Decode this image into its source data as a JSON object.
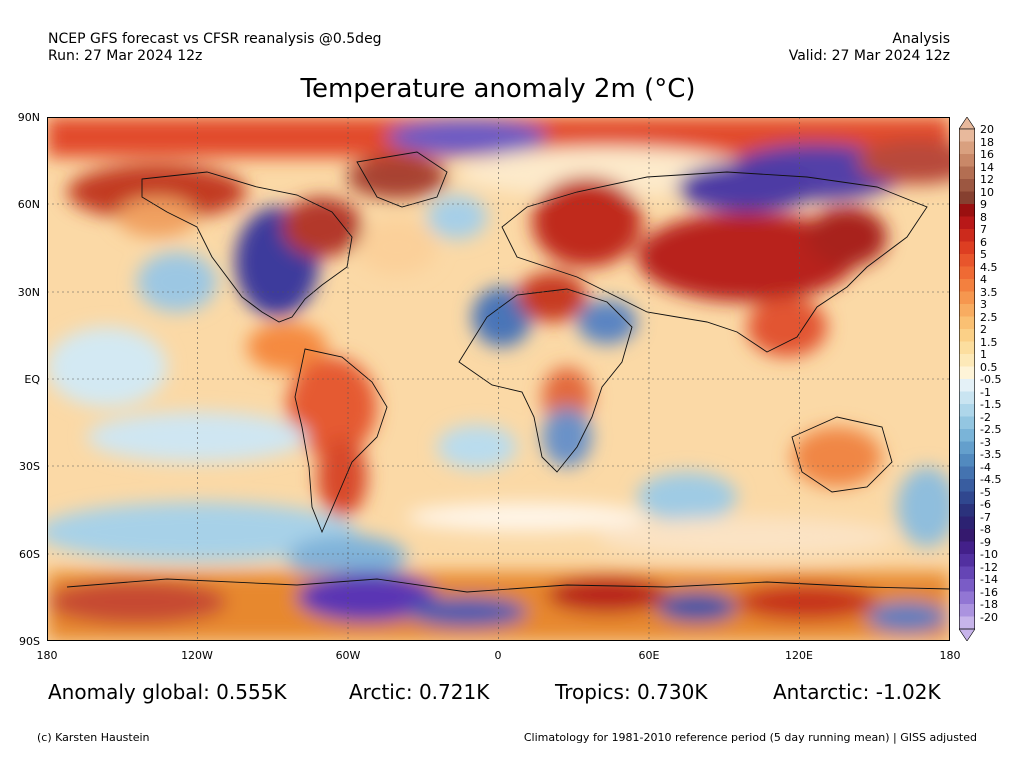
{
  "header": {
    "left_line1": "NCEP GFS forecast vs CFSR reanalysis @0.5deg",
    "left_line2": "Run: 27 Mar 2024 12z",
    "right_line1": "Analysis",
    "right_line2": "Valid: 27 Mar 2024 12z"
  },
  "title": "Temperature anomaly 2m (°C)",
  "map": {
    "lat_labels": [
      "90N",
      "60N",
      "30N",
      "EQ",
      "30S",
      "60S",
      "90S"
    ],
    "lon_labels": [
      "180",
      "120W",
      "60W",
      "0",
      "60E",
      "120E",
      "180"
    ]
  },
  "colorbar": {
    "labels": [
      "20",
      "18",
      "16",
      "14",
      "12",
      "10",
      "9",
      "8",
      "7",
      "6",
      "5",
      "4.5",
      "4",
      "3.5",
      "3",
      "2.5",
      "2",
      "1.5",
      "1",
      "0.5",
      "-0.5",
      "-1",
      "-1.5",
      "-2",
      "-2.5",
      "-3",
      "-3.5",
      "-4",
      "-4.5",
      "-5",
      "-6",
      "-7",
      "-8",
      "-9",
      "-10",
      "-12",
      "-14",
      "-16",
      "-18",
      "-20"
    ],
    "colors": [
      "#e8b99c",
      "#d9a07f",
      "#c98868",
      "#b36e52",
      "#9c5741",
      "#864030",
      "#9a1010",
      "#b81818",
      "#cc2a1c",
      "#dd3e22",
      "#e8552c",
      "#ef6a34",
      "#f3803f",
      "#f6974f",
      "#f8ac61",
      "#fac073",
      "#fbd087",
      "#fcde9f",
      "#fde9b8",
      "#fef4d8",
      "#e4f1f7",
      "#c9e4f1",
      "#aed6ea",
      "#93c6e1",
      "#7ab4d8",
      "#649fcc",
      "#528abf",
      "#4473b0",
      "#395da0",
      "#30478f",
      "#2b327c",
      "#2c2272",
      "#35196e",
      "#43208a",
      "#5230a0",
      "#6545b5",
      "#7a5cc6",
      "#9276d4",
      "#ab93df",
      "#c7b4ea"
    ]
  },
  "stats": {
    "global": "Anomaly global: 0.555K",
    "arctic": "Arctic: 0.721K",
    "tropics": "Tropics: 0.730K",
    "antarctic": "Antarctic: -1.02K"
  },
  "footer": {
    "credit": "(c) Karsten Haustein",
    "note": "Climatology for 1981-2010 reference period (5 day running mean) | GISS adjusted"
  }
}
